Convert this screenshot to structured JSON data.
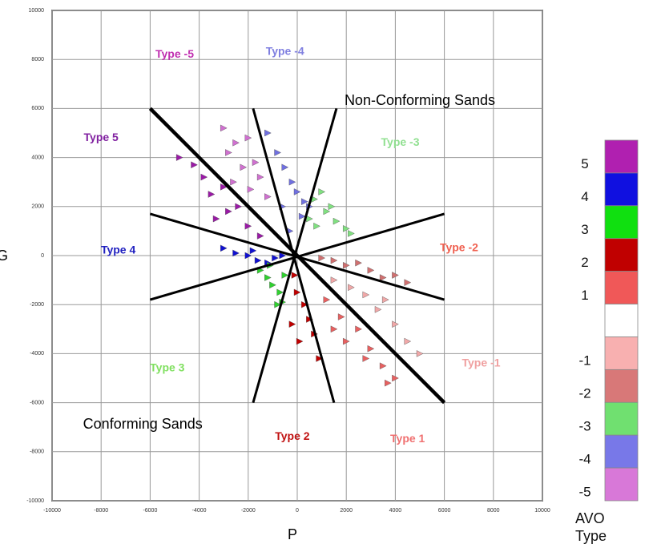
{
  "chart_data": {
    "type": "scatter",
    "xlabel": "P",
    "ylabel": "G",
    "xlim": [
      -10000,
      10000
    ],
    "ylim": [
      -10000,
      10000
    ],
    "xticks": [
      -10000,
      -8000,
      -6000,
      -4000,
      -2000,
      0,
      2000,
      4000,
      6000,
      8000,
      10000
    ],
    "yticks": [
      -10000,
      -8000,
      -6000,
      -4000,
      -2000,
      0,
      2000,
      4000,
      6000,
      8000,
      10000
    ],
    "grid": true,
    "series": [
      {
        "name": "Type -5",
        "color": "#d070d0",
        "x": [
          -3000,
          -2500,
          -2000,
          -1700,
          -2800,
          -2200,
          -1500,
          -2600,
          -1900,
          -1200
        ],
        "y": [
          5200,
          4600,
          4800,
          3800,
          4200,
          3600,
          3200,
          3000,
          2700,
          2400
        ]
      },
      {
        "name": "Type -4",
        "color": "#7070e0",
        "x": [
          -1200,
          -800,
          -500,
          -200,
          0,
          300,
          -600,
          200,
          500,
          -300
        ],
        "y": [
          5000,
          4200,
          3600,
          3000,
          2600,
          2200,
          2000,
          1600,
          2000,
          1000
        ]
      },
      {
        "name": "Type 5",
        "color": "#9a1aa6",
        "x": [
          -4800,
          -4200,
          -3800,
          -3500,
          -3000,
          -2800,
          -2400,
          -3300,
          -2000,
          -1500
        ],
        "y": [
          4000,
          3700,
          3200,
          2500,
          2800,
          1800,
          2000,
          1500,
          1200,
          800
        ]
      },
      {
        "name": "Type 4",
        "color": "#1010d0",
        "x": [
          -3000,
          -2500,
          -2000,
          -1600,
          -1200,
          -900,
          -1800,
          -600
        ],
        "y": [
          300,
          100,
          0,
          -200,
          -300,
          -100,
          200,
          0
        ]
      },
      {
        "name": "Type 3",
        "color": "#30d030",
        "x": [
          -1500,
          -1200,
          -1000,
          -700,
          -500,
          -1100,
          -800,
          -600
        ],
        "y": [
          -600,
          -900,
          -1200,
          -1500,
          -800,
          -400,
          -2000,
          -1900
        ]
      },
      {
        "name": "Type 2",
        "color": "#c00000",
        "x": [
          -100,
          0,
          300,
          500,
          -200,
          100,
          700,
          900
        ],
        "y": [
          -800,
          -1500,
          -2000,
          -2600,
          -2800,
          -3500,
          -3200,
          -4200
        ]
      },
      {
        "name": "Type 1",
        "color": "#e86060",
        "x": [
          1200,
          1800,
          2500,
          3000,
          3500,
          4000,
          2000,
          1500,
          2800,
          3700
        ],
        "y": [
          -1800,
          -2500,
          -3000,
          -3800,
          -4500,
          -5000,
          -3500,
          -3000,
          -4200,
          -5200
        ]
      },
      {
        "name": "Type -1",
        "color": "#f0a8a8",
        "x": [
          1500,
          2200,
          2800,
          3300,
          4000,
          4500,
          5000,
          3600
        ],
        "y": [
          -1000,
          -1300,
          -1600,
          -2200,
          -2800,
          -3500,
          -4000,
          -1800
        ]
      },
      {
        "name": "Type -2",
        "color": "#d07070",
        "x": [
          1500,
          2000,
          2500,
          3000,
          3500,
          4000,
          4500,
          1000
        ],
        "y": [
          -200,
          -400,
          -300,
          -600,
          -900,
          -800,
          -1100,
          -100
        ]
      },
      {
        "name": "Type -3",
        "color": "#80e080",
        "x": [
          500,
          800,
          1200,
          1600,
          2000,
          1000,
          1400,
          700,
          2200
        ],
        "y": [
          1500,
          1200,
          1800,
          1400,
          1100,
          2600,
          2000,
          2300,
          900
        ]
      }
    ],
    "boundaries": [
      {
        "x": [
          -6000,
          6000
        ],
        "y": [
          6000,
          -6000
        ],
        "thick": true
      },
      {
        "x": [
          -6000,
          6000
        ],
        "y": [
          1700,
          -1800
        ],
        "thick": false
      },
      {
        "x": [
          -6000,
          6000
        ],
        "y": [
          -1800,
          1700
        ],
        "thick": false
      },
      {
        "x": [
          -1800,
          1500
        ],
        "y": [
          6000,
          -6000
        ],
        "thick": false
      },
      {
        "x": [
          1600,
          -1800
        ],
        "y": [
          6000,
          -6000
        ],
        "thick": false
      }
    ],
    "annotations": [
      {
        "text": "Type -5",
        "x": -5000,
        "y": 8200,
        "color": "#c030b0",
        "bold": true
      },
      {
        "text": "Type -4",
        "x": -500,
        "y": 8300,
        "color": "#8080e0",
        "bold": true
      },
      {
        "text": "Non-Conforming Sands",
        "x": 5000,
        "y": 6300,
        "color": "#000000",
        "bold": false
      },
      {
        "text": "Type -3",
        "x": 4200,
        "y": 4600,
        "color": "#90e090",
        "bold": true
      },
      {
        "text": "Type 5",
        "x": -8000,
        "y": 4800,
        "color": "#8020a0",
        "bold": true
      },
      {
        "text": "Type 4",
        "x": -7300,
        "y": 200,
        "color": "#2020c0",
        "bold": true
      },
      {
        "text": "Type -2",
        "x": 6600,
        "y": 300,
        "color": "#f06050",
        "bold": true
      },
      {
        "text": "Type -1",
        "x": 7500,
        "y": -4400,
        "color": "#f0a0a0",
        "bold": true
      },
      {
        "text": "Type 3",
        "x": -5300,
        "y": -4600,
        "color": "#80e060",
        "bold": true
      },
      {
        "text": "Conforming Sands",
        "x": -6300,
        "y": -6900,
        "color": "#000000",
        "bold": false
      },
      {
        "text": "Type 2",
        "x": -200,
        "y": -7400,
        "color": "#c01010",
        "bold": true
      },
      {
        "text": "Type 1",
        "x": 4500,
        "y": -7500,
        "color": "#f07070",
        "bold": true
      }
    ],
    "colorbar": {
      "title": "AVO Type",
      "labels": [
        "5",
        "4",
        "3",
        "2",
        "1",
        null,
        "-1",
        "-2",
        "-3",
        "-4",
        "-5"
      ],
      "colors": [
        "#b020b0",
        "#1010e0",
        "#10e010",
        "#c00000",
        "#f05858",
        "#ffffff",
        "#f8b0b0",
        "#d87878",
        "#70e070",
        "#7878e8",
        "#d878d8"
      ]
    }
  }
}
